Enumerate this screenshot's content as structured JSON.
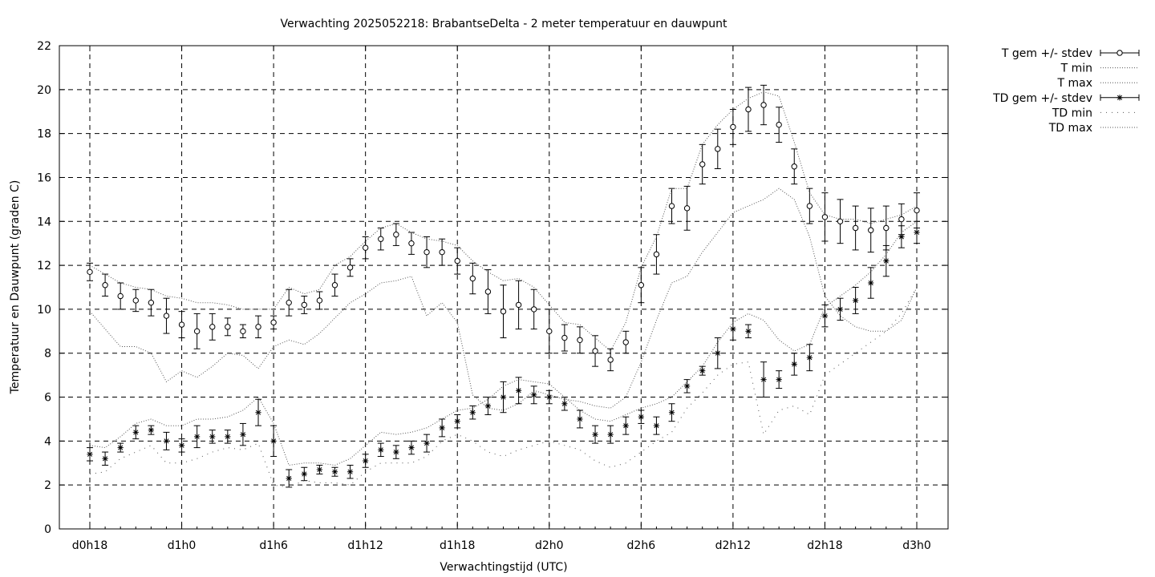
{
  "chart_data": {
    "type": "line",
    "title": "Verwachting 2025052218: BrabantseDelta - 2 meter temperatuur en dauwpunt",
    "xlabel": "Verwachtingstijd (UTC)",
    "ylabel": "Temperatuur en Dauwpunt (graden C)",
    "xlim": [
      18,
      72
    ],
    "ylim": [
      0,
      22
    ],
    "x_ticks": [
      {
        "x": 18,
        "label": "d0h18"
      },
      {
        "x": 24,
        "label": "d1h0"
      },
      {
        "x": 30,
        "label": "d1h6"
      },
      {
        "x": 36,
        "label": "d1h12"
      },
      {
        "x": 42,
        "label": "d1h18"
      },
      {
        "x": 48,
        "label": "d2h0"
      },
      {
        "x": 54,
        "label": "d2h6"
      },
      {
        "x": 60,
        "label": "d2h12"
      },
      {
        "x": 66,
        "label": "d2h18"
      },
      {
        "x": 72,
        "label": "d3h0"
      }
    ],
    "y_ticks": [
      0,
      2,
      4,
      6,
      8,
      10,
      12,
      14,
      16,
      18,
      20,
      22
    ],
    "grid": true,
    "legend_position": "top-right, outside plot",
    "x": [
      18,
      19,
      20,
      21,
      22,
      23,
      24,
      25,
      26,
      27,
      28,
      29,
      30,
      31,
      32,
      33,
      34,
      35,
      36,
      37,
      38,
      39,
      40,
      41,
      42,
      43,
      44,
      45,
      46,
      47,
      48,
      49,
      50,
      51,
      52,
      53,
      54,
      55,
      56,
      57,
      58,
      59,
      60,
      61,
      62,
      63,
      64,
      65,
      66,
      67,
      68,
      69,
      70,
      71,
      72
    ],
    "series": [
      {
        "name": "T gem +/- stdev",
        "style": "points-errorbars",
        "marker": "open-circle",
        "values": [
          11.7,
          11.1,
          10.6,
          10.4,
          10.3,
          9.7,
          9.3,
          9.0,
          9.2,
          9.2,
          9.0,
          9.2,
          9.4,
          10.3,
          10.2,
          10.4,
          11.1,
          11.9,
          12.8,
          13.2,
          13.4,
          13.0,
          12.6,
          12.6,
          12.2,
          11.4,
          10.8,
          9.9,
          10.2,
          10.0,
          9.0,
          8.7,
          8.6,
          8.1,
          7.7,
          8.5,
          11.1,
          12.5,
          14.7,
          14.6,
          16.6,
          17.3,
          18.3,
          19.1,
          19.3,
          18.4,
          16.5,
          14.7,
          14.2,
          14.0,
          13.7,
          13.6,
          13.7,
          14.1,
          14.5
        ],
        "stdev": [
          0.4,
          0.5,
          0.6,
          0.5,
          0.6,
          0.8,
          0.6,
          0.8,
          0.6,
          0.4,
          0.3,
          0.5,
          0.3,
          0.6,
          0.4,
          0.4,
          0.5,
          0.4,
          0.5,
          0.5,
          0.5,
          0.5,
          0.7,
          0.6,
          0.6,
          0.7,
          1.0,
          1.2,
          1.1,
          0.9,
          1.0,
          0.6,
          0.6,
          0.7,
          0.5,
          0.5,
          0.8,
          0.9,
          0.8,
          1.0,
          0.9,
          0.9,
          0.8,
          1.0,
          0.9,
          0.8,
          0.8,
          0.8,
          1.1,
          1.0,
          1.0,
          1.0,
          1.0,
          0.7,
          0.8
        ]
      },
      {
        "name": "T min",
        "style": "dotted",
        "values": [
          9.9,
          9.1,
          8.3,
          8.3,
          8.0,
          6.7,
          7.2,
          6.9,
          7.4,
          8.0,
          7.9,
          7.3,
          8.3,
          8.6,
          8.4,
          8.9,
          9.6,
          10.3,
          10.7,
          11.2,
          11.3,
          11.5,
          9.7,
          10.3,
          9.4,
          6.1,
          5.5,
          5.4,
          5.7,
          6.3,
          6.1,
          5.9,
          5.8,
          5.6,
          5.5,
          6.0,
          7.6,
          9.5,
          11.2,
          11.5,
          12.6,
          13.5,
          14.4,
          14.7,
          15.0,
          15.5,
          15.0,
          13.3,
          10.6,
          9.7,
          9.2,
          9.0,
          9.0,
          9.5,
          11.0
        ],
        "stdev": []
      },
      {
        "name": "T max",
        "style": "dotted",
        "values": [
          12.0,
          11.6,
          11.2,
          11.0,
          10.9,
          10.6,
          10.5,
          10.3,
          10.3,
          10.2,
          10.0,
          10.0,
          10.0,
          11.0,
          10.7,
          10.9,
          12.0,
          12.4,
          13.1,
          13.7,
          13.9,
          13.5,
          13.2,
          13.1,
          12.9,
          12.2,
          11.7,
          11.3,
          11.4,
          11.0,
          10.2,
          9.4,
          9.3,
          8.7,
          8.1,
          9.4,
          11.9,
          13.3,
          15.5,
          15.5,
          17.5,
          18.4,
          19.1,
          19.6,
          19.9,
          19.7,
          17.6,
          15.3,
          14.3,
          14.1,
          14.1,
          13.9,
          14.1,
          14.3,
          14.7
        ],
        "stdev": []
      },
      {
        "name": "TD gem +/- stdev",
        "style": "points-errorbars",
        "marker": "asterisk",
        "values": [
          3.4,
          3.2,
          3.7,
          4.4,
          4.5,
          4.0,
          3.8,
          4.2,
          4.2,
          4.2,
          4.3,
          5.3,
          4.0,
          2.3,
          2.5,
          2.7,
          2.6,
          2.6,
          3.1,
          3.6,
          3.5,
          3.7,
          3.9,
          4.6,
          4.9,
          5.3,
          5.6,
          6.0,
          6.3,
          6.1,
          6.0,
          5.7,
          5.0,
          4.3,
          4.3,
          4.7,
          5.1,
          4.7,
          5.3,
          6.5,
          7.2,
          8.0,
          9.1,
          9.0,
          6.8,
          6.8,
          7.5,
          7.8,
          9.7,
          10.0,
          10.4,
          11.2,
          12.2,
          13.3,
          13.5
        ],
        "stdev": [
          0.3,
          0.3,
          0.2,
          0.3,
          0.2,
          0.4,
          0.3,
          0.5,
          0.3,
          0.3,
          0.5,
          0.6,
          0.7,
          0.4,
          0.3,
          0.2,
          0.2,
          0.3,
          0.3,
          0.3,
          0.3,
          0.3,
          0.4,
          0.4,
          0.3,
          0.3,
          0.4,
          0.7,
          0.6,
          0.4,
          0.3,
          0.3,
          0.4,
          0.4,
          0.4,
          0.4,
          0.3,
          0.4,
          0.4,
          0.3,
          0.2,
          0.7,
          0.5,
          0.3,
          0.8,
          0.4,
          0.5,
          0.6,
          0.5,
          0.5,
          0.6,
          0.7,
          0.7,
          0.5,
          0.5
        ]
      },
      {
        "name": "TD min",
        "style": "dotted",
        "values": [
          2.5,
          2.6,
          3.2,
          3.5,
          3.8,
          3.0,
          3.0,
          3.2,
          3.5,
          3.7,
          3.6,
          3.9,
          2.0,
          1.9,
          2.2,
          2.1,
          2.1,
          2.0,
          2.6,
          3.0,
          3.0,
          3.0,
          3.3,
          4.0,
          4.3,
          4.0,
          3.5,
          3.3,
          3.6,
          3.8,
          4.0,
          3.8,
          3.6,
          3.1,
          2.8,
          3.0,
          3.5,
          4.0,
          4.4,
          5.5,
          6.2,
          7.0,
          7.5,
          7.6,
          4.3,
          5.4,
          5.6,
          5.2,
          7.0,
          7.5,
          8.0,
          8.5,
          9.0,
          9.8,
          11.0
        ],
        "stdev": []
      },
      {
        "name": "TD max",
        "style": "dotted",
        "values": [
          3.8,
          3.7,
          4.2,
          4.8,
          5.0,
          4.7,
          4.7,
          5.0,
          5.0,
          5.1,
          5.4,
          6.0,
          4.8,
          2.9,
          3.0,
          3.0,
          2.9,
          3.2,
          3.8,
          4.4,
          4.3,
          4.4,
          4.6,
          5.0,
          5.4,
          5.5,
          5.9,
          6.5,
          6.8,
          6.7,
          6.6,
          6.0,
          5.4,
          5.0,
          4.9,
          5.2,
          5.5,
          5.7,
          6.0,
          6.7,
          7.4,
          8.5,
          9.4,
          9.8,
          9.5,
          8.6,
          8.1,
          8.4,
          10.1,
          10.6,
          11.1,
          11.7,
          12.5,
          13.5,
          14.0
        ],
        "stdev": []
      }
    ]
  }
}
